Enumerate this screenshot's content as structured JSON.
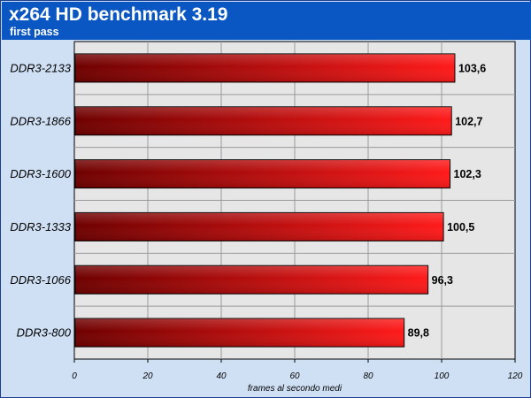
{
  "header": {
    "title": "x264 HD benchmark 3.19",
    "subtitle": "first pass"
  },
  "colors": {
    "header_bg": "#0a56c2",
    "frame_bg": "#cfe0f4",
    "plot_bg": "#e6e6e6",
    "bar_dark": "#6e0000",
    "bar_light": "#ff1a1a"
  },
  "chart_data": {
    "type": "bar",
    "orientation": "horizontal",
    "title": "x264 HD benchmark 3.19",
    "subtitle": "first pass",
    "categories": [
      "DDR3-2133",
      "DDR3-1866",
      "DDR3-1600",
      "DDR3-1333",
      "DDR3-1066",
      "DDR3-800"
    ],
    "values": [
      103.6,
      102.7,
      102.3,
      100.5,
      96.3,
      89.8
    ],
    "value_labels": [
      "103,6",
      "102,7",
      "102,3",
      "100,5",
      "96,3",
      "89,8"
    ],
    "xlabel": "frames al secondo medi",
    "ylabel": "",
    "xlim": [
      0,
      120
    ],
    "ticks": [
      0,
      20,
      40,
      60,
      80,
      100,
      120
    ],
    "tick_labels": [
      "0",
      "20",
      "40",
      "60",
      "80",
      "100",
      "120"
    ],
    "grid": true,
    "legend": "none"
  }
}
